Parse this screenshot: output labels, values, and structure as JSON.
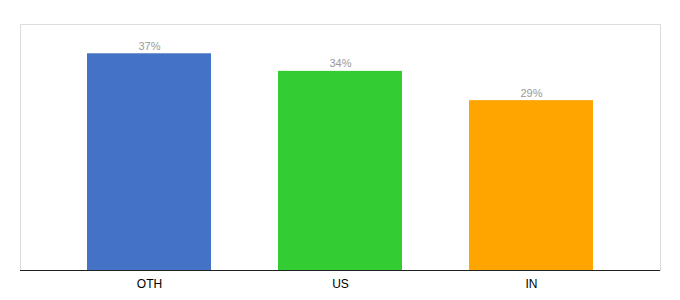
{
  "chart_data": {
    "type": "bar",
    "categories": [
      "OTH",
      "US",
      "IN"
    ],
    "values": [
      37,
      34,
      29
    ],
    "value_labels": [
      "37%",
      "34%",
      "29%"
    ],
    "colors": [
      "#4472C4",
      "#33CC33",
      "#FFA500"
    ],
    "ylim": [
      0,
      42
    ],
    "data_labels": true,
    "tick_labels": "x",
    "grid": false
  }
}
